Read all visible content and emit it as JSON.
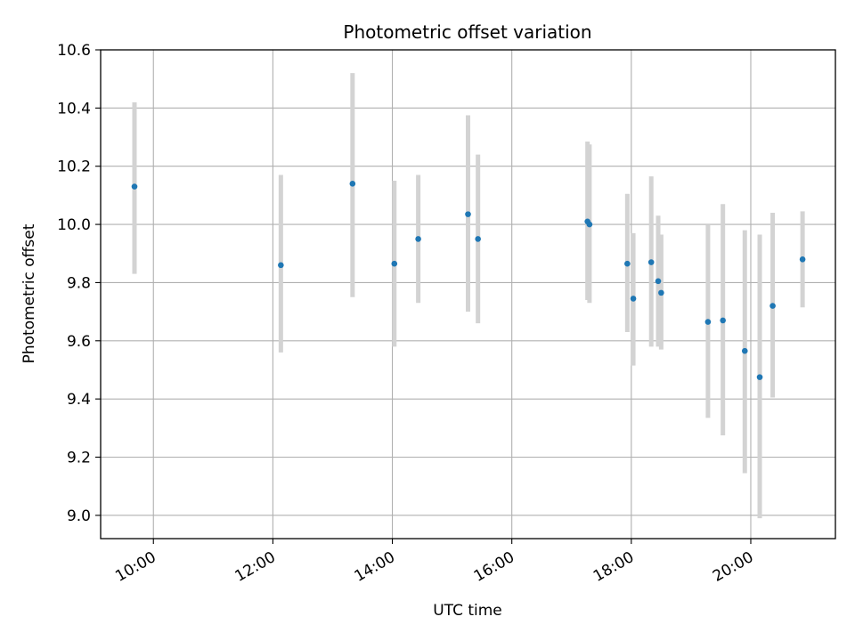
{
  "chart_data": {
    "type": "scatter",
    "title": "Photometric offset variation",
    "xlabel": "UTC time",
    "ylabel": "Photometric offset",
    "xlim": [
      "09:07",
      "21:25"
    ],
    "ylim": [
      8.92,
      10.6
    ],
    "xticks": [
      "10:00",
      "12:00",
      "14:00",
      "16:00",
      "18:00",
      "20:00"
    ],
    "yticks": [
      "9.0",
      "9.2",
      "9.4",
      "9.6",
      "9.8",
      "10.0",
      "10.2",
      "10.4",
      "10.6"
    ],
    "grid": true,
    "errorbar_color": "#d3d3d3",
    "marker_color": "#1f77b4",
    "points": [
      {
        "x": "09:41",
        "y": 10.13,
        "lo": 9.83,
        "hi": 10.42
      },
      {
        "x": "12:08",
        "y": 9.86,
        "lo": 9.56,
        "hi": 10.17
      },
      {
        "x": "13:20",
        "y": 10.14,
        "lo": 9.75,
        "hi": 10.52
      },
      {
        "x": "14:02",
        "y": 9.865,
        "lo": 9.58,
        "hi": 10.15
      },
      {
        "x": "14:26",
        "y": 9.95,
        "lo": 9.73,
        "hi": 10.17
      },
      {
        "x": "15:16",
        "y": 10.035,
        "lo": 9.7,
        "hi": 10.375
      },
      {
        "x": "15:26",
        "y": 9.95,
        "lo": 9.66,
        "hi": 10.24
      },
      {
        "x": "17:16",
        "y": 10.01,
        "lo": 9.74,
        "hi": 10.285
      },
      {
        "x": "17:18",
        "y": 10.0,
        "lo": 9.73,
        "hi": 10.275
      },
      {
        "x": "17:56",
        "y": 9.865,
        "lo": 9.63,
        "hi": 10.105
      },
      {
        "x": "18:02",
        "y": 9.745,
        "lo": 9.515,
        "hi": 9.97
      },
      {
        "x": "18:20",
        "y": 9.87,
        "lo": 9.58,
        "hi": 10.165
      },
      {
        "x": "18:27",
        "y": 9.805,
        "lo": 9.58,
        "hi": 10.03
      },
      {
        "x": "18:30",
        "y": 9.765,
        "lo": 9.57,
        "hi": 9.965
      },
      {
        "x": "19:17",
        "y": 9.665,
        "lo": 9.335,
        "hi": 10.0
      },
      {
        "x": "19:32",
        "y": 9.67,
        "lo": 9.275,
        "hi": 10.07
      },
      {
        "x": "19:54",
        "y": 9.565,
        "lo": 9.145,
        "hi": 9.98
      },
      {
        "x": "20:09",
        "y": 9.475,
        "lo": 8.99,
        "hi": 9.965
      },
      {
        "x": "20:22",
        "y": 9.72,
        "lo": 9.405,
        "hi": 10.04
      },
      {
        "x": "20:52",
        "y": 9.88,
        "lo": 9.715,
        "hi": 10.045
      }
    ]
  }
}
